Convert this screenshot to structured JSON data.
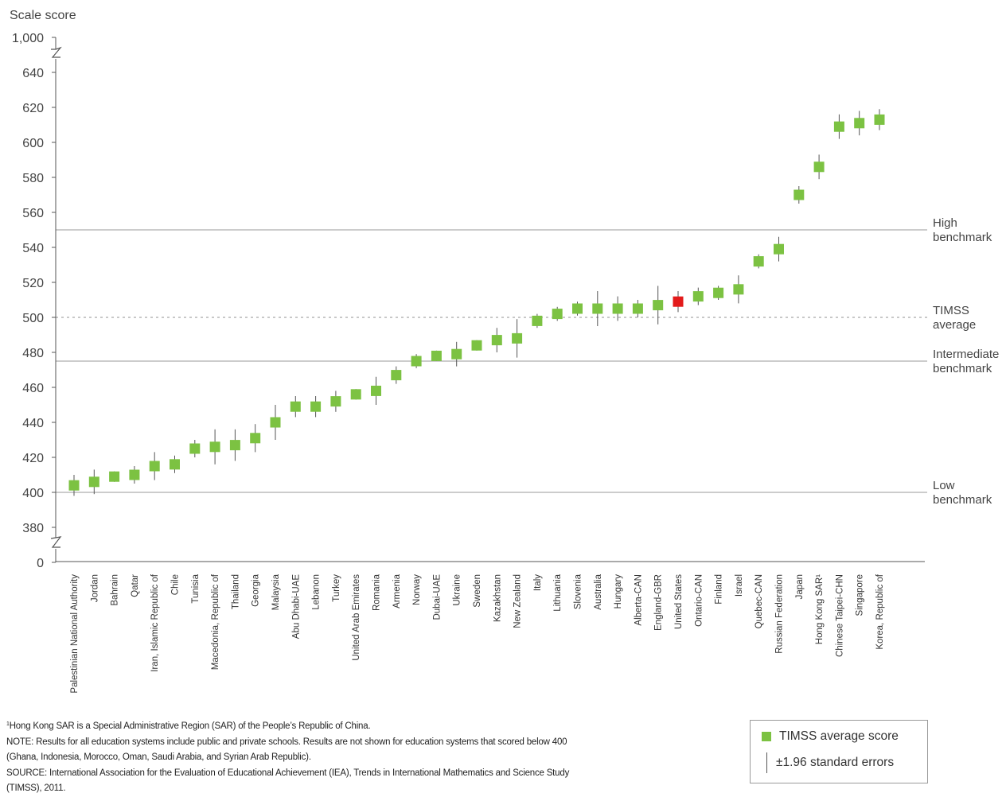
{
  "chart_data": {
    "type": "scatter",
    "y_axis_title": "Scale score",
    "y_ticks": [
      0,
      380,
      400,
      420,
      440,
      460,
      480,
      500,
      520,
      540,
      560,
      580,
      600,
      620,
      640,
      1000
    ],
    "y_tick_labels": [
      "0",
      "380",
      "400",
      "420",
      "440",
      "460",
      "480",
      "500",
      "520",
      "540",
      "560",
      "580",
      "600",
      "620",
      "640",
      "1,000"
    ],
    "ylim": [
      370,
      648
    ],
    "axis_breaks": true,
    "highlight_category": "United States",
    "colors": {
      "point": "#7cc242",
      "highlight": "#e31b1b",
      "highlight_label": "#e31b1b",
      "error_bar": "#555555",
      "reference_line": "#9a9a9a"
    },
    "categories": [
      "Palestinian National Authority",
      "Jordan",
      "Bahrain",
      "Qatar",
      "Iran, Islamic Republic of",
      "Chile",
      "Tunisia",
      "Macedonia, Republic of",
      "Thailand",
      "Georgia",
      "Malaysia",
      "Abu Dhabi-UAE",
      "Lebanon",
      "Turkey",
      "United Arab Emirates",
      "Romania",
      "Armenia",
      "Norway",
      "Dubai-UAE",
      "Ukraine",
      "Sweden",
      "Kazakhstan",
      "New Zealand",
      "Italy",
      "Lithuania",
      "Slovenia",
      "Australia",
      "Hungary",
      "Alberta-CAN",
      "England-GBR",
      "United States",
      "Ontario-CAN",
      "Finland",
      "Israel",
      "Quebec-CAN",
      "Russian Federation",
      "Japan",
      "Hong Kong SAR¹",
      "Chinese Taipei-CHN",
      "Singapore",
      "Korea, Republic of"
    ],
    "series": [
      {
        "name": "TIMSS average score",
        "values": [
          404,
          406,
          409,
          410,
          415,
          416,
          425,
          426,
          427,
          431,
          440,
          449,
          449,
          452,
          456,
          458,
          467,
          475,
          478,
          479,
          484,
          487,
          488,
          498,
          502,
          505,
          505,
          505,
          505,
          507,
          509,
          512,
          514,
          516,
          532,
          539,
          570,
          586,
          609,
          611,
          613
        ]
      },
      {
        "name": "±1.96 standard errors",
        "values": [
          6,
          7,
          3,
          5,
          8,
          5,
          5,
          10,
          9,
          8,
          10,
          6,
          6,
          6,
          3,
          8,
          5,
          4,
          3,
          7,
          3,
          7,
          11,
          4,
          4,
          4,
          10,
          7,
          5,
          11,
          6,
          5,
          4,
          8,
          4,
          7,
          5,
          7,
          7,
          7,
          6
        ]
      }
    ],
    "reference_lines": [
      {
        "value": 550,
        "label_line1": "High",
        "label_line2": "benchmark",
        "style": "solid"
      },
      {
        "value": 500,
        "label_line1": "TIMSS",
        "label_line2": "average",
        "style": "dotted"
      },
      {
        "value": 475,
        "label_line1": "Intermediate",
        "label_line2": "benchmark",
        "style": "solid"
      },
      {
        "value": 400,
        "label_line1": "Low",
        "label_line2": "benchmark",
        "style": "solid"
      }
    ],
    "legend": {
      "position": "bottom-right",
      "items": [
        "TIMSS average score",
        "±1.96 standard errors"
      ]
    }
  },
  "notes": {
    "footnote_marker": "1",
    "footnote": "Hong Kong SAR is a Special Administrative Region (SAR) of the People’s Republic of China.",
    "note_line1": "NOTE: Results for all education systems include public and private schools. Results are not shown for education systems that scored below 400",
    "note_line2": "(Ghana, Indonesia, Morocco, Oman, Saudi Arabia, and Syrian Arab Republic).",
    "source_line1": "SOURCE: International Association for the Evaluation of Educational Achievement (IEA), Trends in International Mathematics and Science Study",
    "source_line2": "(TIMSS), 2011."
  }
}
